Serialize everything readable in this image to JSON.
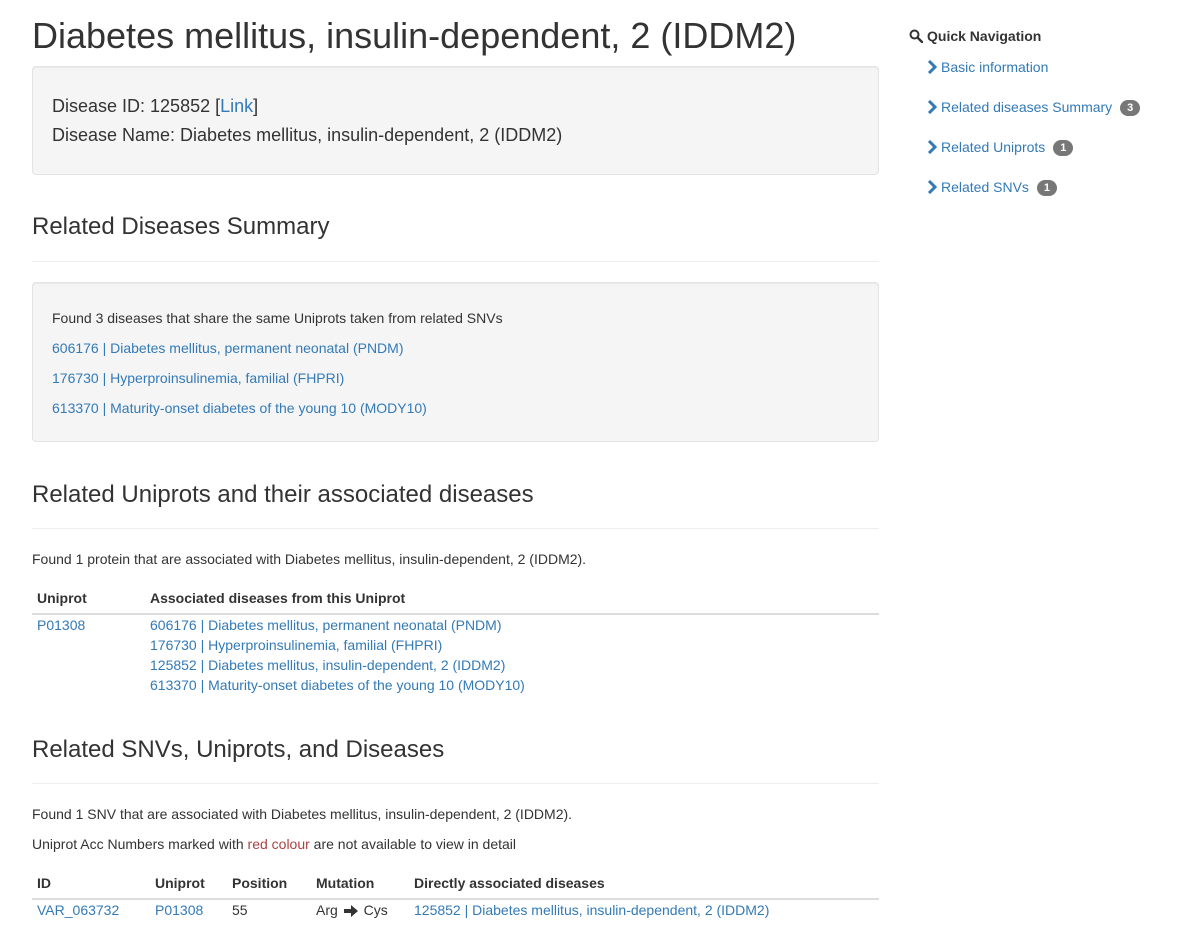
{
  "page_title": "Diabetes mellitus, insulin-dependent, 2 (IDDM2)",
  "info": {
    "disease_id_label": "Disease ID: 125852 [",
    "link_text": "Link",
    "link_close": "]",
    "disease_name_label": "Disease Name: Diabetes mellitus, insulin-dependent, 2 (IDDM2)"
  },
  "related_diseases": {
    "header": "Related Diseases Summary",
    "found_text": "Found 3 diseases that share the same Uniprots taken from related SNVs",
    "items": [
      "606176 | Diabetes mellitus, permanent neonatal (PNDM)",
      "176730 | Hyperproinsulinemia, familial (FHPRI)",
      "613370 | Maturity-onset diabetes of the young 10 (MODY10)"
    ]
  },
  "related_uniprots": {
    "header": "Related Uniprots and their associated diseases",
    "found_text": "Found 1 protein that are associated with Diabetes mellitus, insulin-dependent, 2 (IDDM2).",
    "columns": [
      "Uniprot",
      "Associated diseases from this Uniprot"
    ],
    "rows": [
      {
        "uniprot": "P01308",
        "diseases": [
          "606176 | Diabetes mellitus, permanent neonatal (PNDM)",
          "176730 | Hyperproinsulinemia, familial (FHPRI)",
          "125852 | Diabetes mellitus, insulin-dependent, 2 (IDDM2)",
          "613370 | Maturity-onset diabetes of the young 10 (MODY10)"
        ]
      }
    ]
  },
  "related_snvs": {
    "header": "Related SNVs, Uniprots, and Diseases",
    "found_text": "Found 1 SNV that are associated with Diabetes mellitus, insulin-dependent, 2 (IDDM2).",
    "note_prefix": "Uniprot Acc Numbers marked with ",
    "note_red": "red colour",
    "note_suffix": " are not available to view in detail",
    "columns": [
      "ID",
      "Uniprot",
      "Position",
      "Mutation",
      "Directly associated diseases"
    ],
    "rows": [
      {
        "id": "VAR_063732",
        "uniprot": "P01308",
        "position": "55",
        "mutation_from": "Arg",
        "mutation_to": "Cys",
        "disease": "125852 | Diabetes mellitus, insulin-dependent, 2 (IDDM2)"
      }
    ]
  },
  "quick_nav": {
    "title": "Quick Navigation",
    "items": [
      {
        "label": "Basic information",
        "badge": ""
      },
      {
        "label": "Related diseases Summary",
        "badge": "3"
      },
      {
        "label": "Related Uniprots",
        "badge": "1"
      },
      {
        "label": "Related SNVs",
        "badge": "1"
      }
    ]
  },
  "colors": {
    "link": "#337ab7",
    "text": "#333333",
    "well_bg": "#f5f5f5",
    "badge_bg": "#777777",
    "red_note": "#a94442"
  }
}
